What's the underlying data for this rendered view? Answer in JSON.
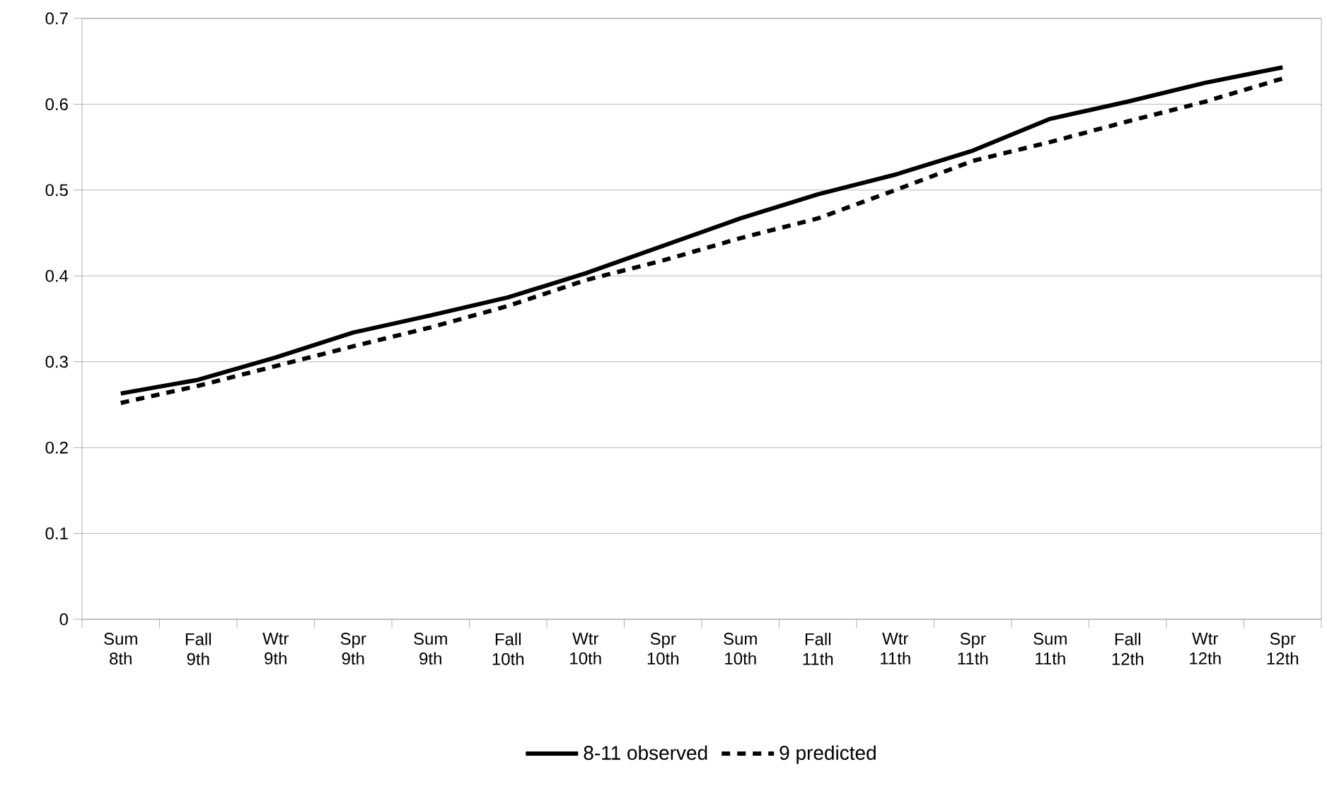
{
  "chart_data": {
    "type": "line",
    "categories": [
      "Sum 8th",
      "Fall 9th",
      "Wtr 9th",
      "Spr 9th",
      "Sum 9th",
      "Fall 10th",
      "Wtr 10th",
      "Spr 10th",
      "Sum 10th",
      "Fall 11th",
      "Wtr 11th",
      "Spr 11th",
      "Sum 11th",
      "Fall 12th",
      "Wtr 12th",
      "Spr 12th"
    ],
    "series": [
      {
        "name": "8-11 observed",
        "color": "#000000",
        "line_style": "solid",
        "values": [
          0.263,
          0.279,
          0.305,
          0.334,
          0.354,
          0.375,
          0.403,
          0.435,
          0.467,
          0.495,
          0.518,
          0.546,
          0.583,
          0.603,
          0.625,
          0.643
        ]
      },
      {
        "name": "9 predicted",
        "color": "#000000",
        "line_style": "dashed",
        "values": [
          0.252,
          0.272,
          0.295,
          0.318,
          0.34,
          0.365,
          0.395,
          0.418,
          0.444,
          0.467,
          0.5,
          0.534,
          0.556,
          0.58,
          0.603,
          0.63
        ]
      }
    ],
    "ylim": [
      0,
      0.7
    ],
    "yticks": [
      0,
      0.1,
      0.2,
      0.3,
      0.4,
      0.5,
      0.6,
      0.7
    ],
    "grid": "y",
    "legend": "bottom",
    "marker": "none"
  }
}
